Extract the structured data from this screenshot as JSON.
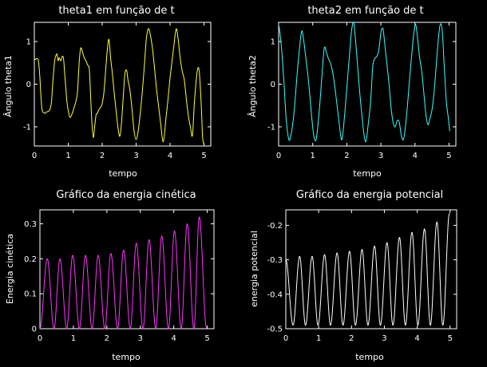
{
  "chart_data": [
    {
      "type": "line",
      "title": "theta1 em função de t",
      "xlabel": "tempo",
      "ylabel": "Ângulo theta1",
      "xlim": [
        0,
        5.2
      ],
      "ylim": [
        -1.45,
        1.45
      ],
      "xticks": [
        0,
        1,
        2,
        3,
        4,
        5
      ],
      "yticks": [
        -1,
        0,
        1
      ],
      "color": "#ffff33",
      "series": [
        {
          "x": [
            0,
            0.04,
            0.08,
            0.12,
            0.16,
            0.22,
            0.3,
            0.36,
            0.44,
            0.5,
            0.55,
            0.6,
            0.64,
            0.67,
            0.7,
            0.73,
            0.78,
            0.82,
            0.86,
            0.9,
            0.96,
            1.0,
            1.05,
            1.12,
            1.17,
            1.22,
            1.27,
            1.3,
            1.33,
            1.37,
            1.42,
            1.47,
            1.52,
            1.57,
            1.62,
            1.66,
            1.7,
            1.74,
            1.78,
            1.82,
            1.86,
            1.9,
            1.95,
            2.0,
            2.05,
            2.1,
            2.15,
            2.2,
            2.25,
            2.3,
            2.36,
            2.42,
            2.47,
            2.52,
            2.57,
            2.62,
            2.67,
            2.72,
            2.76,
            2.82,
            2.88,
            2.94,
            3.0,
            3.06,
            3.12,
            3.18,
            3.24,
            3.3,
            3.36,
            3.42,
            3.48,
            3.54,
            3.6,
            3.66,
            3.72,
            3.8,
            3.88,
            3.94,
            4.0,
            4.06,
            4.12,
            4.18,
            4.24,
            4.3,
            4.36,
            4.42,
            4.48,
            4.54,
            4.6,
            4.66,
            4.72,
            4.8,
            4.86,
            4.92,
            4.96,
            5.0
          ],
          "y": [
            0.6,
            0.58,
            0.6,
            0.55,
            0.2,
            -0.55,
            -0.68,
            -0.65,
            -0.62,
            -0.45,
            0.1,
            0.55,
            0.68,
            0.7,
            0.55,
            0.62,
            0.55,
            0.65,
            0.6,
            0.2,
            -0.4,
            -0.62,
            -0.78,
            -0.68,
            -0.55,
            -0.42,
            -0.2,
            0.2,
            0.6,
            0.85,
            0.75,
            0.62,
            0.55,
            0.45,
            0.35,
            -0.3,
            -0.95,
            -1.25,
            -0.98,
            -0.72,
            -0.68,
            -0.6,
            -0.55,
            -0.45,
            -0.2,
            0.3,
            0.8,
            1.05,
            0.6,
            0.25,
            -0.25,
            -0.7,
            -1.05,
            -1.22,
            -0.9,
            -0.3,
            0.25,
            0.32,
            0.1,
            -0.15,
            -0.6,
            -1.1,
            -1.3,
            -1.1,
            -0.7,
            -0.2,
            0.4,
            1.05,
            1.3,
            1.15,
            0.85,
            0.4,
            -0.1,
            -0.5,
            -0.9,
            -1.35,
            -0.8,
            -0.35,
            0.15,
            0.55,
            0.95,
            1.3,
            1.05,
            0.6,
            0.3,
            0.1,
            -0.35,
            -0.75,
            -1.0,
            -1.2,
            -0.4,
            0.3,
            0.3,
            -0.5,
            -1.25,
            -1.4
          ]
        }
      ]
    },
    {
      "type": "line",
      "title": "theta2 em função de t",
      "xlabel": "tempo",
      "ylabel": "Ângulo theta2",
      "xlim": [
        0,
        5.2
      ],
      "ylim": [
        -1.45,
        1.45
      ],
      "xticks": [
        0,
        1,
        2,
        3,
        4,
        5
      ],
      "yticks": [
        -1,
        0,
        1
      ],
      "color": "#33ffff",
      "series": [
        {
          "x": [
            0,
            0.04,
            0.1,
            0.16,
            0.22,
            0.3,
            0.36,
            0.42,
            0.46,
            0.5,
            0.56,
            0.62,
            0.68,
            0.74,
            0.8,
            0.86,
            0.92,
            0.98,
            1.04,
            1.1,
            1.16,
            1.22,
            1.28,
            1.34,
            1.4,
            1.46,
            1.52,
            1.58,
            1.64,
            1.7,
            1.76,
            1.82,
            1.86,
            1.9,
            1.96,
            2.02,
            2.08,
            2.14,
            2.2,
            2.26,
            2.32,
            2.38,
            2.44,
            2.5,
            2.56,
            2.62,
            2.7,
            2.76,
            2.82,
            2.88,
            2.94,
            3.0,
            3.06,
            3.12,
            3.18,
            3.24,
            3.3,
            3.36,
            3.42,
            3.48,
            3.54,
            3.6,
            3.66,
            3.72,
            3.78,
            3.84,
            3.9,
            3.96,
            4.02,
            4.08,
            4.14,
            4.2,
            4.26,
            4.32,
            4.38,
            4.44,
            4.5,
            4.56,
            4.62,
            4.68,
            4.74,
            4.8,
            4.86,
            4.92,
            4.98,
            5.02
          ],
          "y": [
            1.4,
            1.2,
            0.7,
            0.0,
            -0.8,
            -1.3,
            -1.2,
            -0.9,
            -0.6,
            -0.2,
            0.4,
            0.9,
            1.25,
            1.0,
            0.6,
            0.2,
            -0.3,
            -0.85,
            -1.25,
            -1.3,
            -0.9,
            -0.35,
            0.3,
            0.85,
            0.75,
            0.6,
            0.5,
            0.3,
            0.0,
            -0.4,
            -0.8,
            -1.2,
            -1.3,
            -1.05,
            -0.5,
            0.1,
            0.7,
            1.25,
            1.45,
            1.0,
            0.4,
            -0.2,
            -0.7,
            -1.15,
            -1.35,
            -1.0,
            -0.4,
            0.4,
            0.6,
            0.65,
            0.8,
            1.2,
            1.3,
            0.9,
            0.45,
            0.0,
            -0.55,
            -0.9,
            -1.0,
            -0.85,
            -0.9,
            -1.2,
            -1.3,
            -1.0,
            -0.5,
            0.1,
            0.65,
            1.15,
            1.4,
            1.05,
            0.6,
            0.3,
            -0.2,
            -0.7,
            -0.95,
            -0.8,
            -0.6,
            -0.2,
            0.4,
            1.0,
            1.4,
            1.25,
            0.4,
            -0.4,
            -0.8,
            -1.1
          ]
        }
      ]
    },
    {
      "type": "line",
      "title": "Gráfico da energia cinética",
      "xlabel": "tempo",
      "ylabel": "Energia cinética",
      "xlim": [
        0,
        5.2
      ],
      "ylim": [
        0,
        0.34
      ],
      "xticks": [
        0,
        1,
        2,
        3,
        4,
        5
      ],
      "yticks": [
        0,
        0.1,
        0.2,
        0.3
      ],
      "ytick_labels": [
        "0",
        "0.1",
        "0.2",
        "0.3"
      ],
      "color": "#ff33ff",
      "oscillation": {
        "t_end": 5.0,
        "peak_times": [
          0.22,
          0.6,
          0.98,
          1.36,
          1.74,
          2.12,
          2.5,
          2.88,
          3.26,
          3.64,
          4.02,
          4.4,
          4.76
        ],
        "peak_values": [
          0.2,
          0.2,
          0.21,
          0.21,
          0.21,
          0.215,
          0.225,
          0.245,
          0.255,
          0.265,
          0.28,
          0.3,
          0.32
        ],
        "trough_times": [
          0.0,
          0.42,
          0.8,
          1.18,
          1.56,
          1.94,
          2.32,
          2.7,
          3.08,
          3.46,
          3.84,
          4.22,
          4.6,
          4.98
        ],
        "trough_values": [
          0.0,
          0.0,
          0.0,
          0.0,
          0.0,
          0.0,
          0.0,
          0.0,
          0.0,
          0.0,
          0.0,
          0.0,
          0.0,
          0.0
        ]
      }
    },
    {
      "type": "line",
      "title": "Gráfico da energia potencial",
      "xlabel": "tempo",
      "ylabel": "energia potencial",
      "xlim": [
        0,
        5.2
      ],
      "ylim": [
        -0.5,
        -0.155
      ],
      "xticks": [
        0,
        1,
        2,
        3,
        4,
        5
      ],
      "yticks": [
        -0.5,
        -0.4,
        -0.3,
        -0.2
      ],
      "ytick_labels": [
        "-0.5",
        "-0.4",
        "-0.3",
        "-0.2"
      ],
      "color": "#ffffff",
      "oscillation": {
        "t_end": 5.0,
        "start_value": -0.3,
        "peak_times": [
          0.42,
          0.8,
          1.18,
          1.56,
          1.94,
          2.32,
          2.7,
          3.08,
          3.46,
          3.84,
          4.22,
          4.6,
          4.98
        ],
        "peak_values": [
          -0.29,
          -0.29,
          -0.285,
          -0.28,
          -0.275,
          -0.27,
          -0.26,
          -0.25,
          -0.235,
          -0.22,
          -0.21,
          -0.19,
          -0.165
        ],
        "trough_times": [
          0.22,
          0.6,
          0.98,
          1.36,
          1.74,
          2.12,
          2.5,
          2.88,
          3.26,
          3.64,
          4.02,
          4.4,
          4.78
        ],
        "trough_values": [
          -0.49,
          -0.49,
          -0.49,
          -0.49,
          -0.49,
          -0.49,
          -0.49,
          -0.49,
          -0.49,
          -0.49,
          -0.49,
          -0.49,
          -0.49
        ]
      }
    }
  ]
}
